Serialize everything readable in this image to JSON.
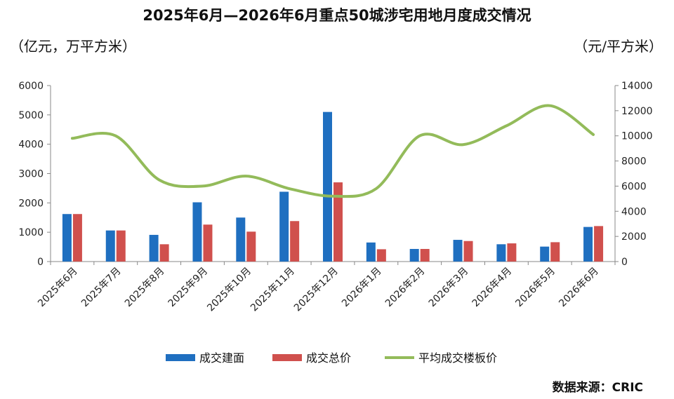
{
  "title": "2025年6月—2026年6月重点50城涉宅用地月度成交情况",
  "unit_left": "（亿元，万平方米）",
  "unit_right": "（元/平方米）",
  "source": "数据来源：CRIC",
  "colors": {
    "area": "#1f6fc0",
    "price": "#d0504d",
    "avg": "#93bb5a"
  },
  "chart_data": {
    "type": "bar",
    "categories": [
      "2025年6月",
      "2025年7月",
      "2025年8月",
      "2025年9月",
      "2025年10月",
      "2025年11月",
      "2025年12月",
      "2026年1月",
      "2026年2月",
      "2026年3月",
      "2026年4月",
      "2026年5月",
      "2026年6月"
    ],
    "series": [
      {
        "name": "成交建面",
        "type": "bar",
        "axis": "left",
        "values": [
          1620,
          1060,
          910,
          2020,
          1500,
          2380,
          5100,
          650,
          430,
          740,
          590,
          510,
          1180
        ]
      },
      {
        "name": "成交总价",
        "type": "bar",
        "axis": "left",
        "values": [
          1620,
          1060,
          590,
          1260,
          1020,
          1380,
          2700,
          420,
          430,
          700,
          620,
          660,
          1210
        ]
      },
      {
        "name": "平均成交楼板价",
        "type": "line",
        "axis": "right",
        "values": [
          9800,
          10000,
          6500,
          6000,
          6800,
          5800,
          5200,
          5800,
          10000,
          9300,
          10800,
          12400,
          10100
        ]
      }
    ],
    "ylim_left": [
      0,
      6000
    ],
    "yticks_left": [
      0,
      1000,
      2000,
      3000,
      4000,
      5000,
      6000
    ],
    "ylim_right": [
      0,
      14000
    ],
    "yticks_right": [
      0,
      2000,
      4000,
      6000,
      8000,
      10000,
      12000,
      14000
    ],
    "legend_position": "bottom",
    "grid": false
  }
}
